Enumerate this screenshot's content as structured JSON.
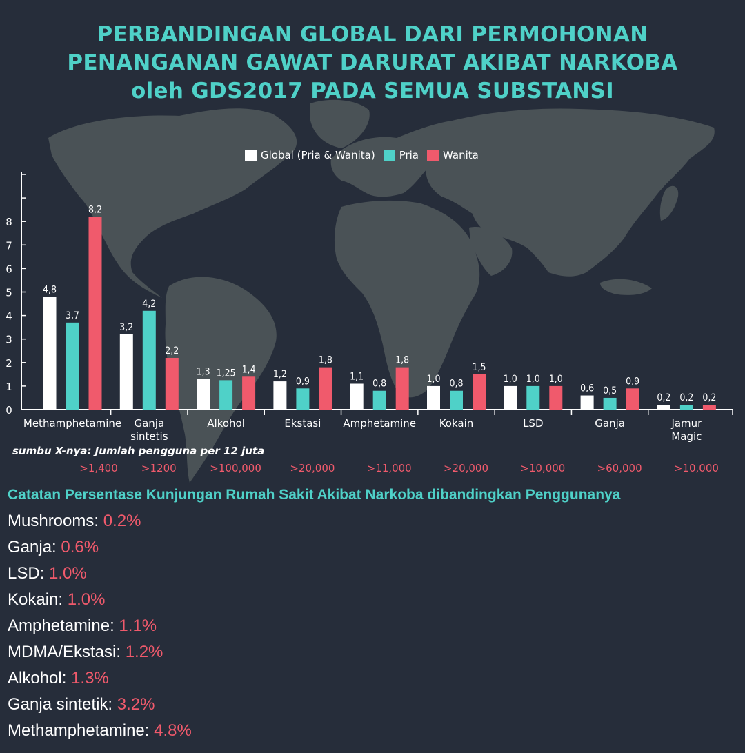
{
  "title_lines": [
    "PERBANDINGAN GLOBAL DARI PERMOHONAN",
    "PENANGANAN GAWAT DARURAT AKIBAT NARKOBA",
    "oleh GDS2017 PADA SEMUA SUBSTANSI"
  ],
  "colors": {
    "global": "#ffffff",
    "pria": "#4fd1c8",
    "wanita": "#f05a6c",
    "title": "#4fd1c8",
    "background": "#262d3a",
    "map": "#4a5256"
  },
  "x_axis_note": "sumbu X-nya: Jumlah pengguna per 12 juta",
  "chart_data": {
    "type": "bar",
    "title": "",
    "xlabel": "",
    "ylabel": "",
    "ylim": [
      0,
      10
    ],
    "y_ticks": [
      "0",
      "1",
      "2",
      "3",
      "4",
      "5",
      "6",
      "7",
      "8"
    ],
    "legend_position": "top-center",
    "categories": [
      {
        "label": [
          "Methamphetamine"
        ],
        "users": ">1,400"
      },
      {
        "label": [
          "Ganja",
          "sintetis"
        ],
        "users": ">1200"
      },
      {
        "label": [
          "Alkohol"
        ],
        "users": ">100,000"
      },
      {
        "label": [
          "Ekstasi"
        ],
        "users": ">20,000"
      },
      {
        "label": [
          "Amphetamine"
        ],
        "users": ">11,000"
      },
      {
        "label": [
          "Kokain"
        ],
        "users": ">20,000"
      },
      {
        "label": [
          "LSD"
        ],
        "users": ">10,000"
      },
      {
        "label": [
          "Ganja"
        ],
        "users": ">60,000"
      },
      {
        "label": [
          "Jamur",
          "Magic"
        ],
        "users": ">10,000"
      }
    ],
    "series": [
      {
        "name": "Global (Pria & Wanita)",
        "color": "#ffffff",
        "values": [
          4.8,
          3.2,
          1.3,
          1.2,
          1.1,
          1.0,
          1.0,
          0.6,
          0.2
        ],
        "labels": [
          "4,8",
          "3,2",
          "1,3",
          "1,2",
          "1,1",
          "1,0",
          "1,0",
          "0,6",
          "0,2"
        ]
      },
      {
        "name": "Pria",
        "color": "#4fd1c8",
        "values": [
          3.7,
          4.2,
          1.25,
          0.9,
          0.8,
          0.8,
          1.0,
          0.5,
          0.2
        ],
        "labels": [
          "3,7",
          "4,2",
          "1,25",
          "0,9",
          "0,8",
          "0,8",
          "1,0",
          "0,5",
          "0,2"
        ]
      },
      {
        "name": "Wanita",
        "color": "#f05a6c",
        "values": [
          8.2,
          2.2,
          1.4,
          1.8,
          1.8,
          1.5,
          1.0,
          0.9,
          0.2
        ],
        "labels": [
          "8,2",
          "2,2",
          "1,4",
          "1,8",
          "1,8",
          "1,5",
          "1,0",
          "0,9",
          "0,2"
        ]
      }
    ]
  },
  "notes": {
    "title": "Catatan Persentase Kunjungan Rumah Sakit Akibat Narkoba dibandingkan Penggunanya",
    "items": [
      {
        "name": "Mushrooms: ",
        "pct": "0.2%"
      },
      {
        "name": "Ganja: ",
        "pct": "0.6%"
      },
      {
        "name": "LSD: ",
        "pct": "1.0%"
      },
      {
        "name": "Kokain: ",
        "pct": "1.0%"
      },
      {
        "name": "Amphetamine: ",
        "pct": "1.1%"
      },
      {
        "name": "MDMA/Ekstasi: ",
        "pct": "1.2%"
      },
      {
        "name": "Alkohol: ",
        "pct": "1.3%"
      },
      {
        "name": "Ganja sintetik: ",
        "pct": "3.2%"
      },
      {
        "name": "Methamphetamine: ",
        "pct": "4.8%"
      }
    ]
  }
}
